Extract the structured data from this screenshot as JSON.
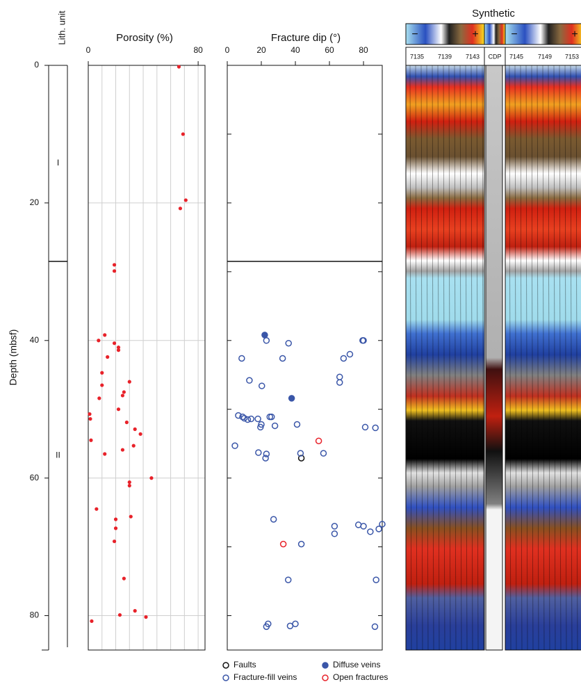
{
  "chart_data": [
    {
      "type": "lithology",
      "title": "Lith. unit",
      "ylabel": "Depth (mbsf)",
      "units": [
        "I",
        "II"
      ],
      "unit_tops": [
        0,
        28.5
      ],
      "ylim": [
        0,
        85
      ],
      "yticks": [
        0,
        20,
        40,
        60,
        80
      ]
    },
    {
      "type": "scatter",
      "title": "Porosity (%)",
      "color": "#e8222a",
      "grid": true,
      "x": [
        66,
        69,
        71,
        67,
        19,
        19,
        12,
        7.5,
        19,
        22,
        22,
        14,
        10,
        30,
        10,
        26,
        25,
        8,
        22,
        1,
        1.5,
        28,
        34,
        38,
        2,
        33,
        25,
        12,
        46,
        30,
        30,
        6,
        31,
        20,
        20,
        19,
        26,
        34,
        23,
        42,
        2.5
      ],
      "y": [
        0.2,
        10,
        19.6,
        20.8,
        29,
        29.9,
        39.2,
        40,
        40.4,
        41,
        41.4,
        42.4,
        44.7,
        46,
        46.5,
        47.5,
        48,
        48.4,
        50,
        50.7,
        51.4,
        51.9,
        52.9,
        53.6,
        54.5,
        55.3,
        55.9,
        56.5,
        60,
        60.6,
        61.1,
        64.5,
        65.6,
        66,
        67.3,
        69.2,
        74.6,
        79.3,
        79.9,
        80.2,
        80.8
      ],
      "xlim": [
        0,
        85
      ],
      "xticks": [
        0,
        80
      ],
      "xgrid": [
        10,
        20,
        30,
        40,
        50,
        60,
        70,
        80
      ],
      "ylim": [
        0,
        85
      ],
      "ygrid": [
        20,
        40,
        60,
        80
      ]
    },
    {
      "type": "scatter",
      "title": "Fracture dip (°)",
      "xlim": [
        0,
        91
      ],
      "xticks": [
        0,
        20,
        40,
        60,
        80
      ],
      "ylim": [
        0,
        85
      ],
      "ytick_marks": [
        10,
        20,
        30,
        40,
        50,
        60,
        70,
        80
      ],
      "series": [
        {
          "name": "Faults",
          "color": "#111111",
          "filled": false,
          "x": [
            43.5
          ],
          "y": [
            57.1
          ]
        },
        {
          "name": "Fracture-fill veins",
          "color": "#3a56a8",
          "filled": false,
          "x": [
            23,
            36,
            80,
            79.5,
            8.5,
            32.5,
            72,
            68.3,
            13,
            66,
            66,
            20.3,
            6.5,
            9,
            10,
            12,
            14,
            18,
            20,
            19.5,
            25,
            26,
            28,
            41,
            81,
            87,
            4.5,
            18.3,
            23,
            22.5,
            43,
            56.5,
            27.2,
            63,
            63,
            77,
            80,
            84,
            89,
            91,
            43.5,
            35.8,
            87.4,
            24,
            23,
            36.9,
            40,
            86.7
          ],
          "y": [
            40,
            40.4,
            40,
            40,
            42.6,
            42.6,
            42,
            42.6,
            45.8,
            45.3,
            46.1,
            46.6,
            50.9,
            51.1,
            51.3,
            51.5,
            51.4,
            51.4,
            52.2,
            52.6,
            51.1,
            51.1,
            52.4,
            52.2,
            52.6,
            52.7,
            55.3,
            56.3,
            56.5,
            57.1,
            56.4,
            56.4,
            66,
            67,
            68.1,
            66.8,
            67,
            67.8,
            67.4,
            66.7,
            69.6,
            74.8,
            74.8,
            81.2,
            81.6,
            81.5,
            81.2,
            81.6
          ]
        },
        {
          "name": "Diffuse veins",
          "color": "#3a56a8",
          "filled": true,
          "x": [
            22,
            37.8
          ],
          "y": [
            39.2,
            48.4
          ]
        },
        {
          "name": "Open fractures",
          "color": "#e8222a",
          "filled": false,
          "x": [
            53.7,
            32.9
          ],
          "y": [
            54.6,
            69.6
          ]
        }
      ]
    }
  ],
  "synthetic": {
    "title": "Synthetic",
    "minus": "−",
    "plus": "+",
    "traces_left": [
      "7135",
      "7139",
      "7143"
    ],
    "cdp": "CDP",
    "traces_right": [
      "7145",
      "7149",
      "7153"
    ]
  }
}
